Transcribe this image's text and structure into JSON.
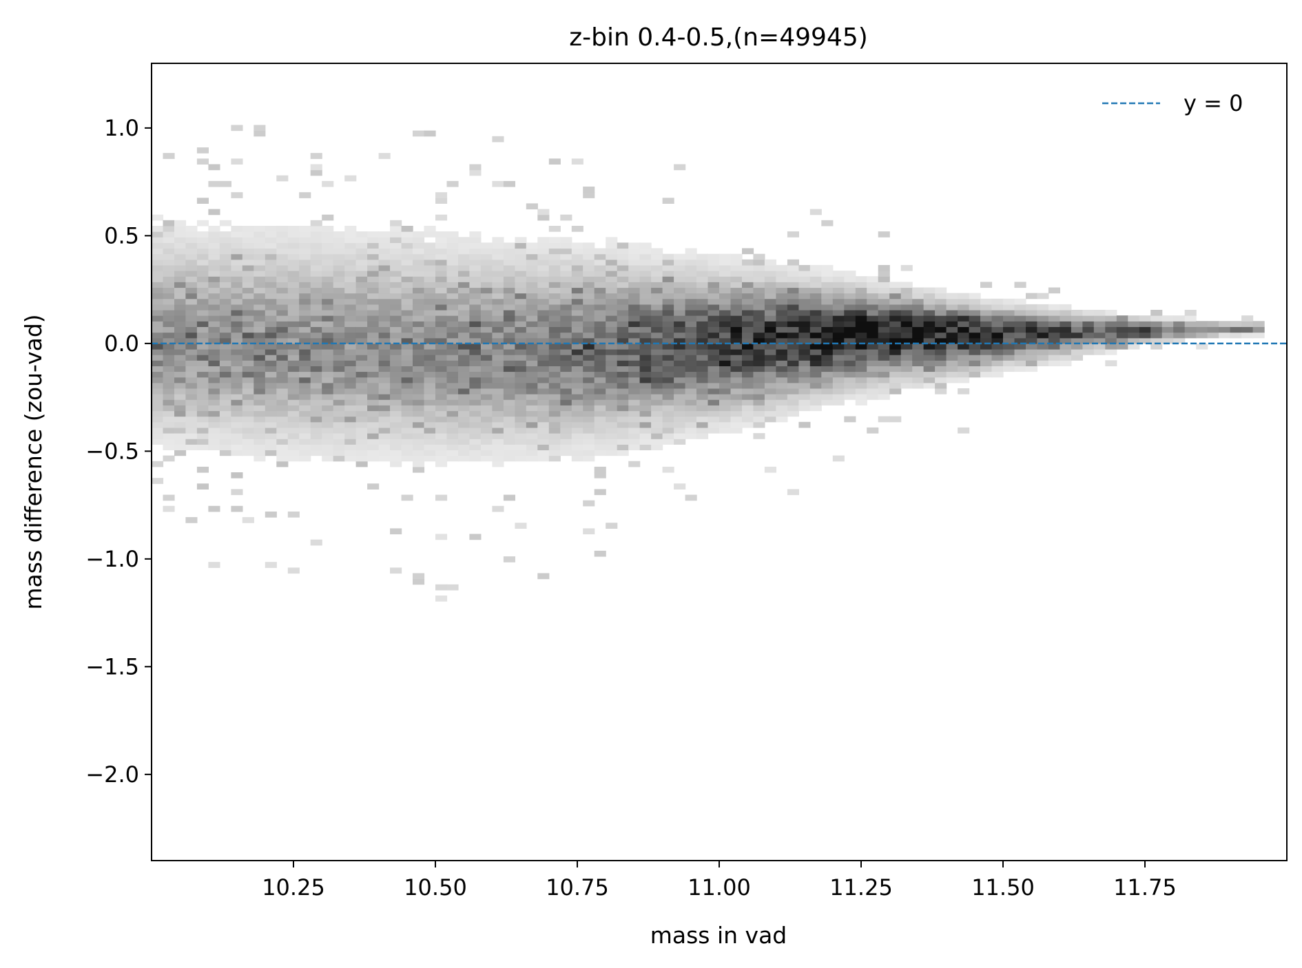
{
  "chart_data": {
    "type": "heatmap",
    "title": "z-bin 0.4-0.5,(n=49945)",
    "xlabel": "mass in vad",
    "ylabel": "mass difference (zou-vad)",
    "xlim": [
      10.0,
      12.0
    ],
    "ylim": [
      -2.4,
      1.3
    ],
    "x_ticks": [
      10.25,
      10.5,
      10.75,
      11.0,
      11.25,
      11.5,
      11.75
    ],
    "x_tick_labels": [
      "10.25",
      "10.50",
      "10.75",
      "11.00",
      "11.25",
      "11.50",
      "11.75"
    ],
    "y_ticks": [
      1.0,
      0.5,
      0.0,
      -0.5,
      -1.0,
      -1.5,
      -2.0
    ],
    "y_tick_labels": [
      "1.0",
      "0.5",
      "0.0",
      "−0.5",
      "−1.0",
      "−1.5",
      "−2.0"
    ],
    "colormap": "greys",
    "reference_line": {
      "label": "y = 0",
      "y": 0,
      "color": "#1f77b4",
      "style": "dashed"
    },
    "legend": {
      "location": "upper right",
      "entries": [
        "y = 0"
      ]
    },
    "density_ridge": [
      {
        "x": 10.0,
        "center": 0.0,
        "spread_above": 0.5,
        "spread_below": 0.42
      },
      {
        "x": 10.25,
        "center": -0.02,
        "spread_above": 0.5,
        "spread_below": 0.45
      },
      {
        "x": 10.5,
        "center": -0.04,
        "spread_above": 0.48,
        "spread_below": 0.45
      },
      {
        "x": 10.75,
        "center": -0.03,
        "spread_above": 0.42,
        "spread_below": 0.42
      },
      {
        "x": 11.0,
        "center": 0.0,
        "spread_above": 0.32,
        "spread_below": 0.33
      },
      {
        "x": 11.25,
        "center": 0.05,
        "spread_above": 0.2,
        "spread_below": 0.24
      },
      {
        "x": 11.5,
        "center": 0.05,
        "spread_above": 0.12,
        "spread_below": 0.15
      },
      {
        "x": 11.75,
        "center": 0.06,
        "spread_above": 0.06,
        "spread_below": 0.06
      },
      {
        "x": 11.9,
        "center": 0.07,
        "spread_above": 0.03,
        "spread_below": 0.03
      }
    ],
    "peak_density": {
      "x": 11.27,
      "y": 0.05
    }
  }
}
